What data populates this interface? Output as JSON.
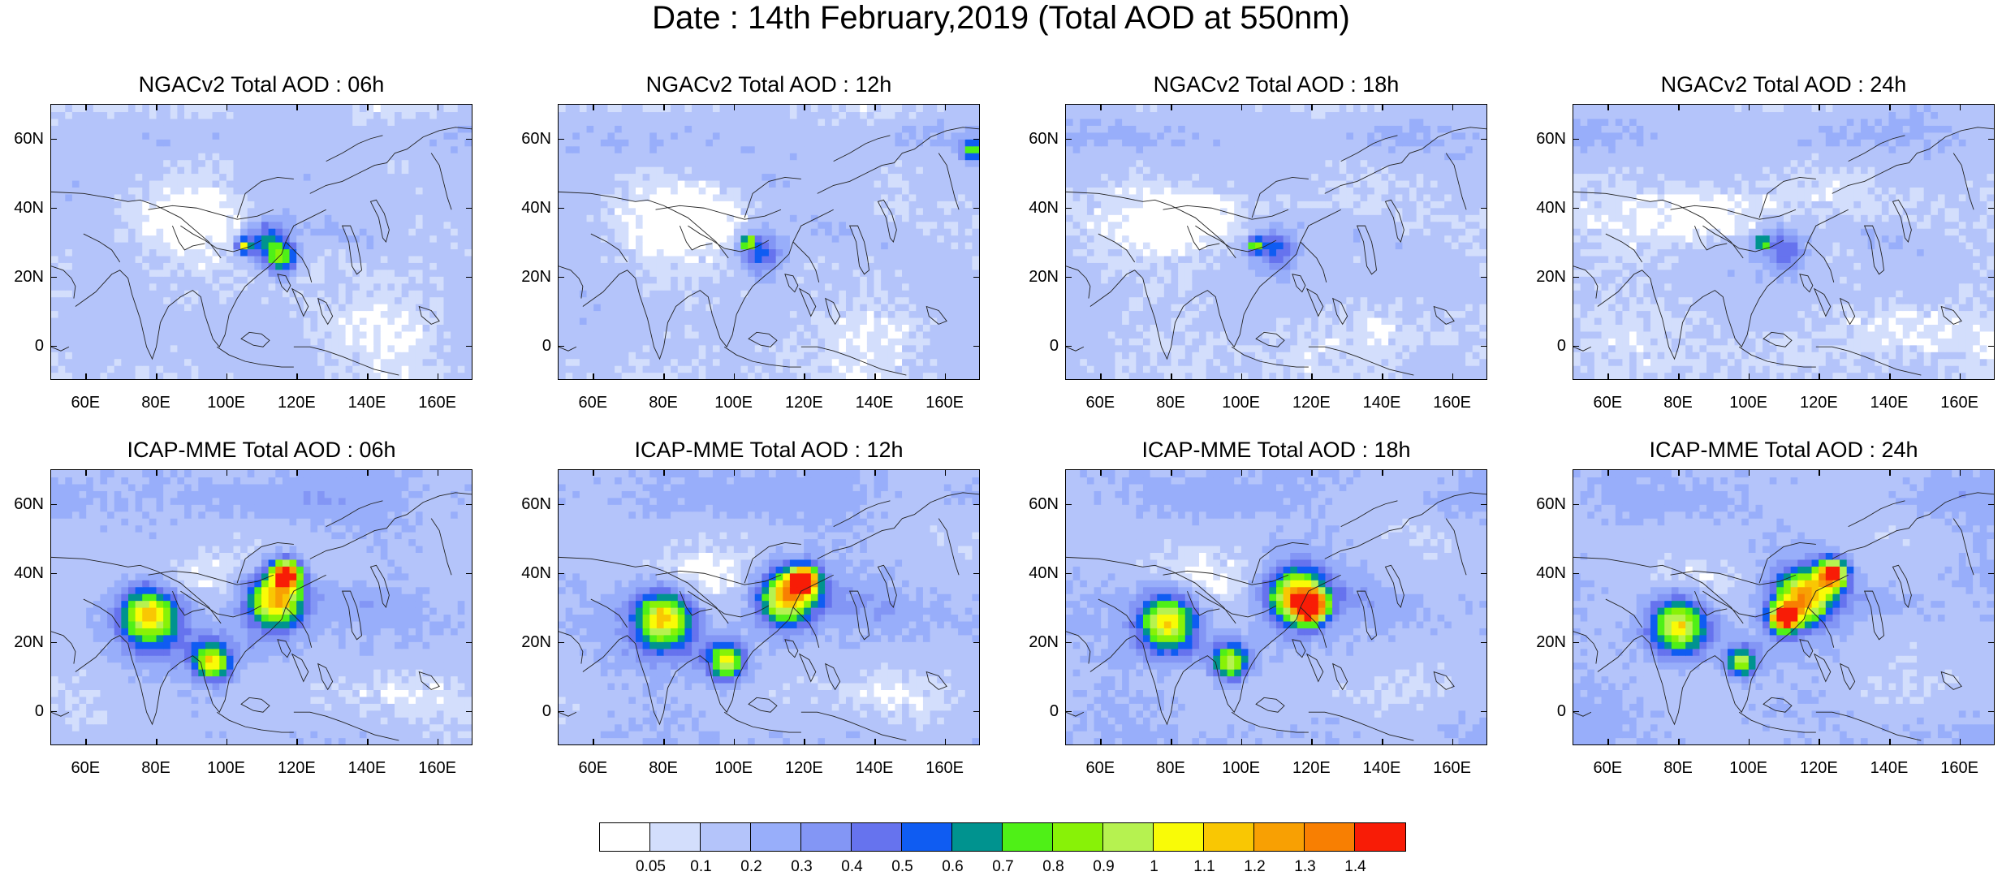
{
  "title": "Date : 14th February,2019 (Total AOD at 550nm)",
  "panels": [
    {
      "title": "NGACv2 Total AOD : 06h",
      "model": "ngac",
      "seed": 1,
      "hotspots": [
        [
          112,
          30,
          6,
          0.55
        ],
        [
          116,
          25,
          4,
          0.6
        ],
        [
          105,
          29,
          2,
          0.85
        ]
      ]
    },
    {
      "title": "NGACv2 Total AOD : 12h",
      "model": "ngac",
      "seed": 2,
      "hotspots": [
        [
          108,
          27,
          6,
          0.45
        ],
        [
          104,
          30,
          2,
          0.8
        ],
        [
          168,
          57,
          3,
          0.6
        ]
      ]
    },
    {
      "title": "NGACv2 Total AOD : 18h",
      "model": "ngac",
      "seed": 3,
      "hotspots": [
        [
          110,
          28,
          6,
          0.4
        ],
        [
          104,
          29,
          2,
          0.75
        ]
      ]
    },
    {
      "title": "NGACv2 Total AOD : 24h",
      "model": "ngac",
      "seed": 4,
      "hotspots": [
        [
          110,
          28,
          6,
          0.38
        ],
        [
          104,
          30,
          2,
          0.65
        ]
      ]
    },
    {
      "title": "ICAP-MME Total AOD : 06h",
      "model": "icap",
      "seed": 5,
      "hotspots": [
        [
          114,
          32,
          8,
          1.1
        ],
        [
          117,
          40,
          4,
          1.3
        ],
        [
          78,
          28,
          8,
          0.95
        ],
        [
          96,
          14,
          5,
          0.85
        ]
      ]
    },
    {
      "title": "ICAP-MME Total AOD : 12h",
      "model": "icap",
      "seed": 6,
      "hotspots": [
        [
          115,
          33,
          8,
          1.05
        ],
        [
          120,
          38,
          4,
          1.3
        ],
        [
          80,
          27,
          8,
          0.95
        ],
        [
          98,
          14,
          5,
          0.85
        ]
      ]
    },
    {
      "title": "ICAP-MME Total AOD : 18h",
      "model": "icap",
      "seed": 7,
      "hotspots": [
        [
          116,
          33,
          8,
          1.05
        ],
        [
          120,
          30,
          4,
          1.25
        ],
        [
          79,
          26,
          8,
          0.95
        ],
        [
          97,
          14,
          5,
          0.85
        ]
      ]
    },
    {
      "title": "ICAP-MME Total AOD : 24h",
      "model": "icap",
      "seed": 8,
      "hotspots": [
        [
          116,
          33,
          8,
          1.05
        ],
        [
          124,
          40,
          4,
          1.3
        ],
        [
          110,
          27,
          4,
          1.25
        ],
        [
          80,
          25,
          8,
          0.95
        ],
        [
          98,
          14,
          4,
          0.8
        ]
      ]
    }
  ],
  "axes": {
    "lon_ticks": [
      "60E",
      "80E",
      "100E",
      "120E",
      "140E",
      "160E"
    ],
    "lat_ticks": [
      "60N",
      "40N",
      "20N",
      "0"
    ],
    "lon_values": [
      60,
      80,
      100,
      120,
      140,
      160
    ],
    "lat_values": [
      60,
      40,
      20,
      0
    ],
    "lon_range": [
      50,
      170
    ],
    "lat_range": [
      -10,
      70
    ]
  },
  "colorbar": {
    "colors": [
      "#ffffff",
      "#d3defc",
      "#b4c4fa",
      "#98aefa",
      "#8396f5",
      "#6673ee",
      "#0f5cf2",
      "#00938f",
      "#4ff017",
      "#88f207",
      "#b6f250",
      "#f9fb07",
      "#f9c703",
      "#f8a003",
      "#f87f02",
      "#f81c06"
    ],
    "labels": [
      "0.05",
      "0.1",
      "0.2",
      "0.3",
      "0.4",
      "0.5",
      "0.6",
      "0.7",
      "0.8",
      "0.9",
      "1",
      "1.1",
      "1.2",
      "1.3",
      "1.4"
    ]
  }
}
